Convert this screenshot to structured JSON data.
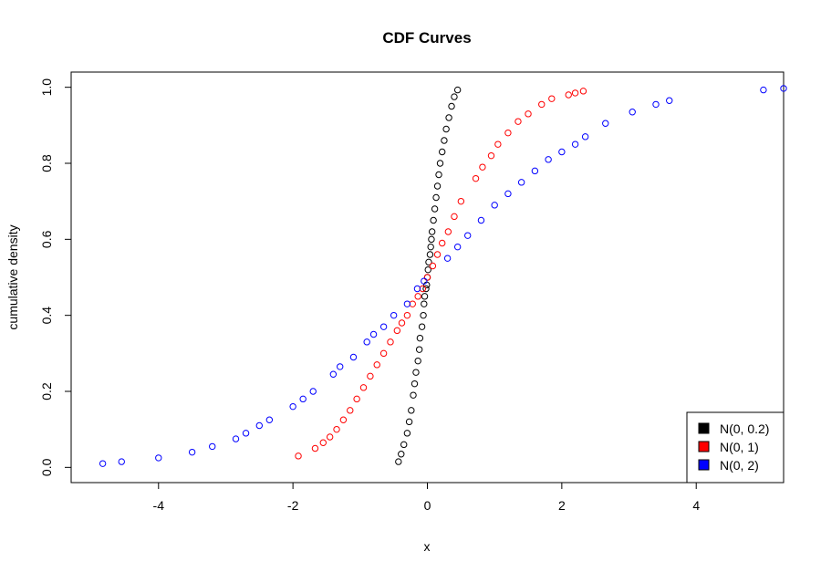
{
  "chart_data": {
    "type": "scatter",
    "title": "CDF Curves",
    "xlabel": "x",
    "ylabel": "cumulative density",
    "xlim": [
      -5.3,
      5.3
    ],
    "ylim": [
      -0.04,
      1.04
    ],
    "x_ticks": [
      -4,
      -2,
      0,
      2,
      4
    ],
    "x_tick_labels": [
      "-4",
      "-2",
      "0",
      "2",
      "4"
    ],
    "y_ticks": [
      0.0,
      0.2,
      0.4,
      0.6,
      0.8,
      1.0
    ],
    "y_tick_labels": [
      "0.0",
      "0.2",
      "0.4",
      "0.6",
      "0.8",
      "1.0"
    ],
    "grid": false,
    "legend_position": "bottom-right",
    "series": [
      {
        "name": "N(0, 0.2)",
        "color": "#000000",
        "x": [
          -0.43,
          -0.39,
          -0.35,
          -0.3,
          -0.27,
          -0.24,
          -0.21,
          -0.19,
          -0.17,
          -0.14,
          -0.12,
          -0.11,
          -0.08,
          -0.06,
          -0.05,
          -0.04,
          -0.02,
          -0.01,
          0.0,
          0.01,
          0.02,
          0.04,
          0.05,
          0.06,
          0.07,
          0.09,
          0.11,
          0.13,
          0.15,
          0.17,
          0.19,
          0.22,
          0.25,
          0.28,
          0.32,
          0.36,
          0.4,
          0.45
        ],
        "y": [
          0.015,
          0.035,
          0.06,
          0.09,
          0.12,
          0.15,
          0.19,
          0.22,
          0.25,
          0.28,
          0.31,
          0.34,
          0.37,
          0.4,
          0.43,
          0.45,
          0.47,
          0.48,
          0.5,
          0.52,
          0.54,
          0.56,
          0.58,
          0.6,
          0.62,
          0.65,
          0.68,
          0.71,
          0.74,
          0.77,
          0.8,
          0.83,
          0.86,
          0.89,
          0.92,
          0.95,
          0.975,
          0.993
        ]
      },
      {
        "name": "N(0, 1)",
        "color": "#ff0000",
        "x": [
          -1.92,
          -1.67,
          -1.55,
          -1.45,
          -1.35,
          -1.25,
          -1.15,
          -1.05,
          -0.95,
          -0.85,
          -0.75,
          -0.65,
          -0.55,
          -0.45,
          -0.38,
          -0.3,
          -0.22,
          -0.14,
          -0.07,
          0.0,
          0.08,
          0.15,
          0.22,
          0.31,
          0.4,
          0.5,
          0.72,
          0.82,
          0.95,
          1.05,
          1.2,
          1.35,
          1.5,
          1.7,
          1.85,
          2.1,
          2.2,
          2.32
        ],
        "y": [
          0.03,
          0.05,
          0.065,
          0.08,
          0.1,
          0.125,
          0.15,
          0.18,
          0.21,
          0.24,
          0.27,
          0.3,
          0.33,
          0.36,
          0.38,
          0.4,
          0.43,
          0.45,
          0.47,
          0.5,
          0.53,
          0.56,
          0.59,
          0.62,
          0.66,
          0.7,
          0.76,
          0.79,
          0.82,
          0.85,
          0.88,
          0.91,
          0.93,
          0.955,
          0.97,
          0.98,
          0.985,
          0.99
        ]
      },
      {
        "name": "N(0, 2)",
        "color": "#0000ff",
        "x": [
          -4.83,
          -4.55,
          -4.0,
          -3.5,
          -3.2,
          -2.85,
          -2.7,
          -2.5,
          -2.35,
          -2.0,
          -1.85,
          -1.7,
          -1.4,
          -1.3,
          -1.1,
          -0.9,
          -0.8,
          -0.65,
          -0.5,
          -0.3,
          -0.15,
          -0.05,
          0.3,
          0.45,
          0.6,
          0.8,
          1.0,
          1.2,
          1.4,
          1.6,
          1.8,
          2.0,
          2.2,
          2.35,
          2.65,
          3.05,
          3.4,
          3.6,
          5.0,
          5.3
        ],
        "y": [
          0.01,
          0.015,
          0.025,
          0.04,
          0.055,
          0.075,
          0.09,
          0.11,
          0.125,
          0.16,
          0.18,
          0.2,
          0.245,
          0.265,
          0.29,
          0.33,
          0.35,
          0.37,
          0.4,
          0.43,
          0.47,
          0.49,
          0.55,
          0.58,
          0.61,
          0.65,
          0.69,
          0.72,
          0.75,
          0.78,
          0.81,
          0.83,
          0.85,
          0.87,
          0.905,
          0.935,
          0.955,
          0.965,
          0.993,
          0.997
        ]
      }
    ]
  }
}
